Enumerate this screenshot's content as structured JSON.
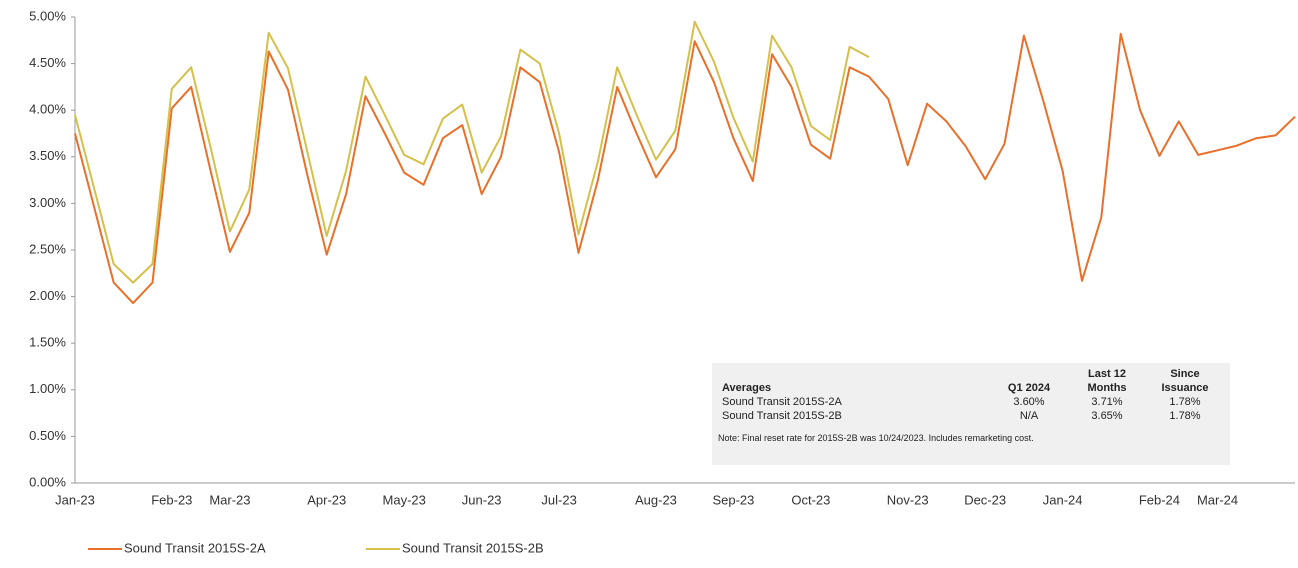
{
  "chart_data": {
    "type": "line",
    "categories": [
      "Jan-23",
      null,
      null,
      null,
      null,
      "Feb-23",
      null,
      null,
      "Mar-23",
      null,
      null,
      null,
      null,
      "Apr-23",
      null,
      null,
      null,
      "May-23",
      null,
      null,
      null,
      "Jun-23",
      null,
      null,
      null,
      "Jul-23",
      null,
      null,
      null,
      null,
      "Aug-23",
      null,
      null,
      null,
      "Sep-23",
      null,
      null,
      null,
      "Oct-23",
      null,
      null,
      null,
      null,
      "Nov-23",
      null,
      null,
      null,
      "Dec-23",
      null,
      null,
      null,
      "Jan-24",
      null,
      null,
      null,
      null,
      "Feb-24",
      null,
      null,
      "Mar-24",
      null,
      null,
      null,
      null
    ],
    "series": [
      {
        "name": "Sound Transit 2015S-2A",
        "color": "#e8702a",
        "values": [
          3.75,
          2.95,
          2.15,
          1.93,
          2.15,
          4.02,
          4.25,
          3.35,
          2.48,
          2.9,
          4.63,
          4.22,
          3.3,
          2.45,
          3.1,
          4.15,
          3.75,
          3.33,
          3.2,
          3.7,
          3.84,
          3.1,
          3.5,
          4.46,
          4.3,
          3.55,
          2.47,
          3.25,
          4.25,
          3.75,
          3.28,
          3.58,
          4.74,
          4.3,
          3.7,
          3.24,
          4.6,
          4.25,
          3.63,
          3.48,
          4.46,
          4.36,
          4.12,
          3.41,
          4.07,
          3.88,
          3.61,
          3.26,
          3.64,
          4.8,
          4.1,
          3.35,
          2.17,
          2.85,
          4.82,
          4.0,
          3.51,
          3.88,
          3.52,
          3.57,
          3.62,
          3.7,
          3.73,
          3.93
        ]
      },
      {
        "name": "Sound Transit 2015S-2B",
        "color": "#d4c04a",
        "values": [
          3.95,
          3.15,
          2.35,
          2.15,
          2.35,
          4.23,
          4.46,
          3.6,
          2.7,
          3.15,
          4.83,
          4.45,
          3.55,
          2.65,
          3.35,
          4.36,
          3.95,
          3.52,
          3.42,
          3.91,
          4.06,
          3.33,
          3.72,
          4.65,
          4.5,
          3.75,
          2.67,
          3.45,
          4.46,
          3.95,
          3.47,
          3.78,
          4.95,
          4.52,
          3.92,
          3.45,
          4.8,
          4.46,
          3.83,
          3.68,
          4.68,
          4.57,
          null,
          null,
          null,
          null,
          null,
          null,
          null,
          null,
          null,
          null,
          null,
          null,
          null,
          null,
          null,
          null,
          null,
          null,
          null,
          null,
          null,
          null
        ]
      }
    ],
    "ylim": [
      0,
      5
    ],
    "yticks": [
      {
        "value": 0,
        "label": "0.00%"
      },
      {
        "value": 0.5,
        "label": "0.50%"
      },
      {
        "value": 1,
        "label": "1.00%"
      },
      {
        "value": 1.5,
        "label": "1.50%"
      },
      {
        "value": 2,
        "label": "2.00%"
      },
      {
        "value": 2.5,
        "label": "2.50%"
      },
      {
        "value": 3,
        "label": "3.00%"
      },
      {
        "value": 3.5,
        "label": "3.50%"
      },
      {
        "value": 4,
        "label": "4.00%"
      },
      {
        "value": 4.5,
        "label": "4.50%"
      },
      {
        "value": 5,
        "label": "5.00%"
      }
    ],
    "grid": false,
    "legend": "bottom"
  },
  "table": {
    "header": [
      "Averages",
      "Q1 2024",
      "Last 12 Months",
      "Since Issuance"
    ],
    "rows": [
      [
        "Sound Transit 2015S-2A",
        "3.60%",
        "3.71%",
        "1.78%"
      ],
      [
        "Sound Transit 2015S-2B",
        "N/A",
        "3.65%",
        "1.78%"
      ]
    ],
    "note": "Note: Final reset rate for 2015S-2B was 10/24/2023. Includes remarketing cost."
  }
}
